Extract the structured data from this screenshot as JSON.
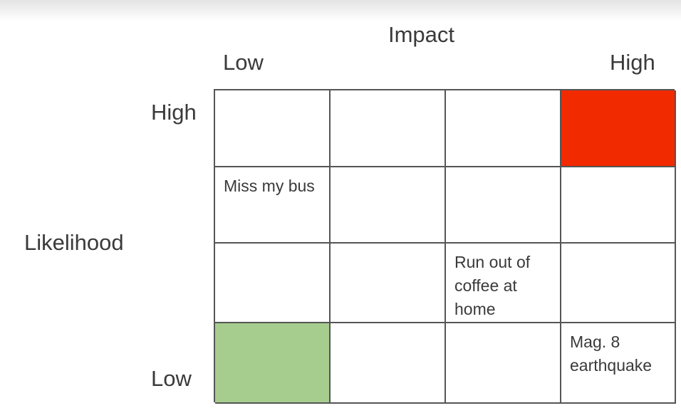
{
  "impact": {
    "title": "Impact",
    "low": "Low",
    "high": "High"
  },
  "likelihood": {
    "title": "Likelihood",
    "high": "High",
    "low": "Low"
  },
  "colors": {
    "high_risk": "#f22a00",
    "low_risk": "#a7cd8e",
    "grid_line": "#555555"
  },
  "matrix": {
    "rows": [
      {
        "cells": [
          {
            "text": "",
            "fill": ""
          },
          {
            "text": "",
            "fill": ""
          },
          {
            "text": "",
            "fill": ""
          },
          {
            "text": "",
            "fill": "high_risk"
          }
        ]
      },
      {
        "cells": [
          {
            "text": "Miss my bus",
            "fill": ""
          },
          {
            "text": "",
            "fill": ""
          },
          {
            "text": "",
            "fill": ""
          },
          {
            "text": "",
            "fill": ""
          }
        ]
      },
      {
        "cells": [
          {
            "text": "",
            "fill": ""
          },
          {
            "text": "",
            "fill": ""
          },
          {
            "text": "Run out of coffee at home",
            "fill": ""
          },
          {
            "text": "",
            "fill": ""
          }
        ]
      },
      {
        "cells": [
          {
            "text": "",
            "fill": "low_risk"
          },
          {
            "text": "",
            "fill": ""
          },
          {
            "text": "",
            "fill": ""
          },
          {
            "text": "Mag. 8 earthquake",
            "fill": ""
          }
        ]
      }
    ]
  }
}
